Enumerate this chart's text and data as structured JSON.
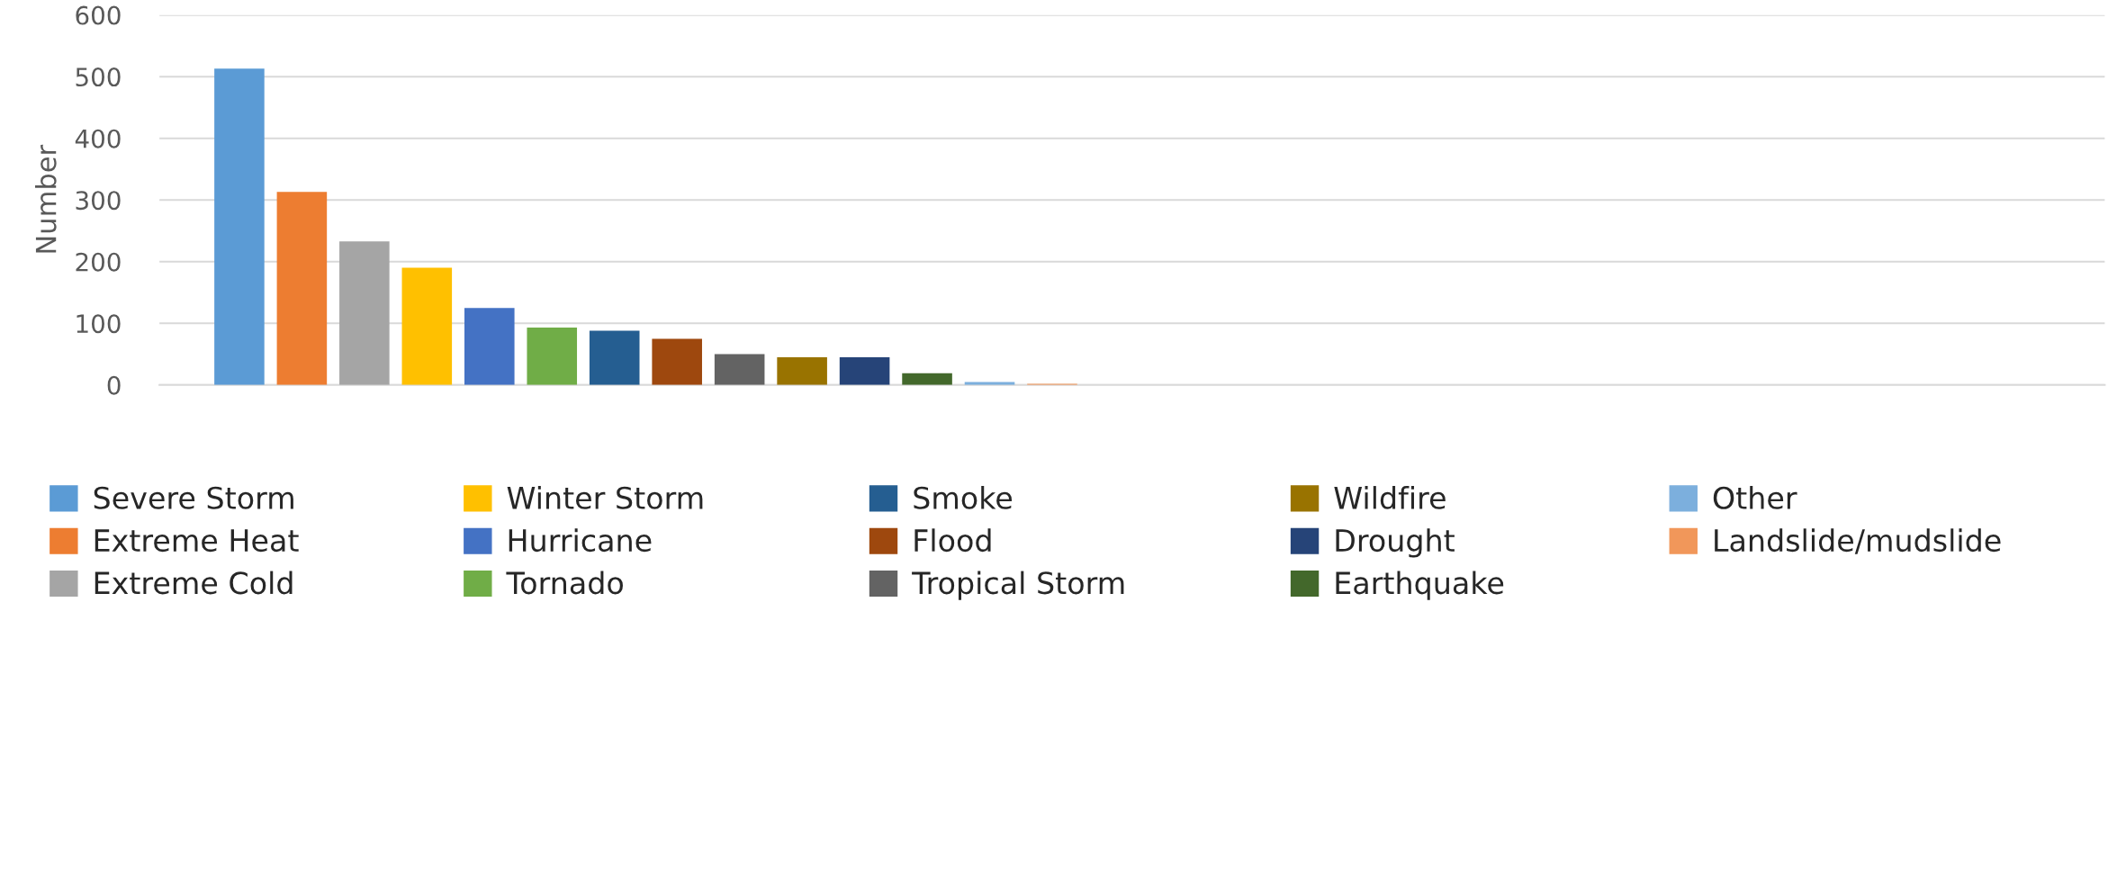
{
  "chart_data": {
    "type": "bar",
    "ylabel": "Number",
    "categories": [
      null,
      null
    ],
    "series": [
      {
        "name": "Severe Storm",
        "color": "#5b9bd5",
        "values": [
          513,
          null
        ]
      },
      {
        "name": "Extreme Heat",
        "color": "#ed7d31",
        "values": [
          313,
          null
        ]
      },
      {
        "name": "Extreme Cold",
        "color": "#a5a5a5",
        "values": [
          233,
          null
        ]
      },
      {
        "name": "Winter Storm",
        "color": "#ffc000",
        "values": [
          190,
          null
        ]
      },
      {
        "name": "Hurricane",
        "color": "#4472c4",
        "values": [
          125,
          null
        ]
      },
      {
        "name": "Tornado",
        "color": "#70ad47",
        "values": [
          93,
          null
        ]
      },
      {
        "name": "Smoke",
        "color": "#255e91",
        "values": [
          88,
          null
        ]
      },
      {
        "name": "Flood",
        "color": "#9e480e",
        "values": [
          75,
          null
        ]
      },
      {
        "name": "Tropical Storm",
        "color": "#636363",
        "values": [
          50,
          null
        ]
      },
      {
        "name": "Wildfire",
        "color": "#997300",
        "values": [
          45,
          null
        ]
      },
      {
        "name": "Drought",
        "color": "#264478",
        "values": [
          45,
          null
        ]
      },
      {
        "name": "Earthquake",
        "color": "#43682b",
        "values": [
          19,
          null
        ]
      },
      {
        "name": "Other",
        "color": "#7cafdd",
        "values": [
          5,
          null
        ]
      },
      {
        "name": "Landslide/mudslide",
        "color": "#f1975a",
        "values": [
          2,
          null
        ]
      }
    ],
    "ylim": [
      0,
      600
    ],
    "yticks": [
      0,
      100,
      200,
      300,
      400,
      500,
      600
    ],
    "grid": "y",
    "legend": "bottom"
  }
}
